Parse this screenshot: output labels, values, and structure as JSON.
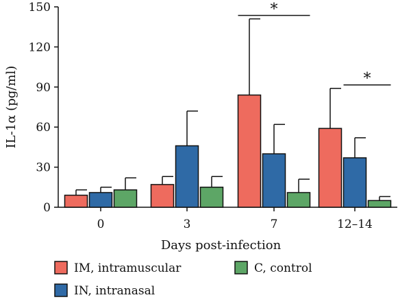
{
  "chart_data": {
    "type": "bar",
    "xlabel": "Days post-infection",
    "ylabel": "IL-1α (pg/ml)",
    "ylim": [
      0,
      150
    ],
    "yticks": [
      0,
      30,
      60,
      90,
      120,
      150
    ],
    "categories": [
      "0",
      "3",
      "7",
      "12–14"
    ],
    "series": [
      {
        "name": "IM, intramuscular",
        "color": "#ee6b5e",
        "values": [
          9,
          17,
          84,
          59
        ],
        "errors": [
          4,
          6,
          57,
          30
        ]
      },
      {
        "name": "IN, intranasal",
        "color": "#2f6aa6",
        "values": [
          11,
          46,
          40,
          37
        ],
        "errors": [
          4,
          26,
          22,
          15
        ]
      },
      {
        "name": "C, control",
        "color": "#5da666",
        "values": [
          13,
          15,
          11,
          5
        ],
        "errors": [
          9,
          8,
          10,
          3
        ]
      }
    ],
    "significance": [
      {
        "category": "7",
        "from_series": 0,
        "to_series": 2,
        "label": "*"
      },
      {
        "category": "12–14",
        "from_series": 1,
        "to_series": 2,
        "label": "*"
      }
    ],
    "legend_position": "bottom"
  }
}
